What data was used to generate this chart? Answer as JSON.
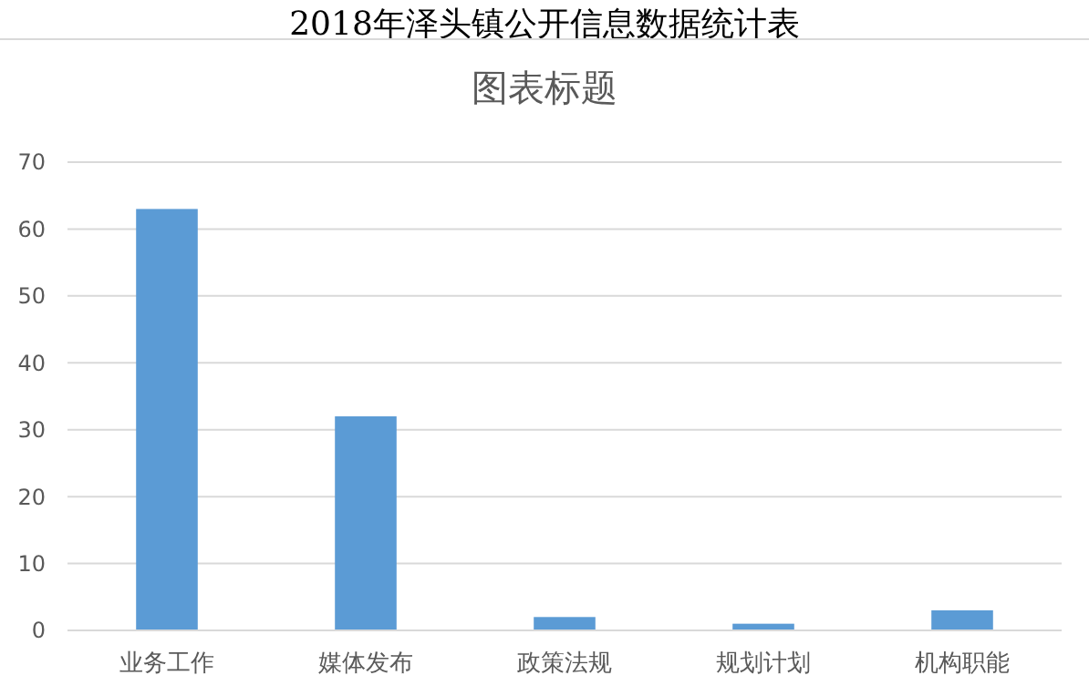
{
  "chart_data": {
    "type": "bar",
    "title": "2018年泽头镇公开信息数据统计表",
    "subtitle": "图表标题",
    "categories": [
      "业务工作",
      "媒体发布",
      "政策法规",
      "规划计划",
      "机构职能"
    ],
    "values": [
      63,
      32,
      2,
      1,
      3
    ],
    "color": "#5b9bd5",
    "ylim": [
      0,
      70
    ],
    "yticks": [
      0,
      10,
      20,
      30,
      40,
      50,
      60,
      70
    ],
    "grid": "y"
  }
}
